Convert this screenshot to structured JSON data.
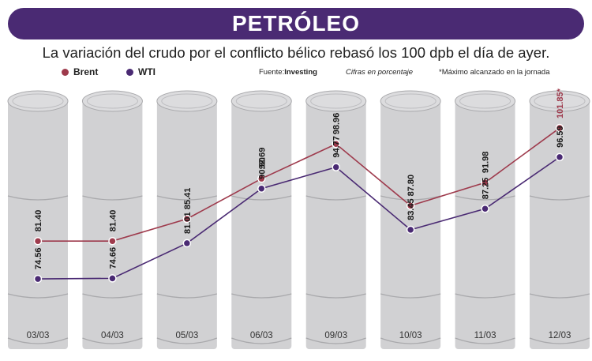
{
  "header": {
    "title": "PETRÓLEO"
  },
  "subtitle": "La variación del crudo por el conflicto bélico rebasó los 100 dpb el día de ayer.",
  "legend": {
    "brent": "Brent",
    "wti": "WTI"
  },
  "notes": {
    "source_prefix": "Fuente:",
    "source_name": "Investing",
    "units": "Cifras en porcentaje",
    "max_note": "*Máximo alcanzado en la jornada"
  },
  "colors": {
    "brent": "#9e3a4c",
    "wti": "#4a2a73",
    "barrel": "#d1d1d3",
    "barrel_dark": "#a9a9ac",
    "header": "#4a2a73"
  },
  "chart_data": {
    "type": "line",
    "title": "PETRÓLEO",
    "subtitle": "La variación del crudo por el conflicto bélico rebasó los 100 dpb el día de ayer.",
    "categories": [
      "03/03",
      "04/03",
      "05/03",
      "06/03",
      "09/03",
      "10/03",
      "11/03",
      "12/03"
    ],
    "series": [
      {
        "name": "Brent",
        "color": "#9e3a4c",
        "values": [
          81.4,
          81.4,
          85.41,
          92.69,
          98.96,
          87.8,
          91.98,
          101.85
        ],
        "labels": [
          "81.40",
          "81.40",
          "85.41",
          "92.69",
          "98.96",
          "87.80",
          "91.98",
          "101.85*"
        ]
      },
      {
        "name": "WTI",
        "color": "#4a2a73",
        "values": [
          74.56,
          74.66,
          81.01,
          90.9,
          94.77,
          83.45,
          87.25,
          96.59
        ],
        "labels": [
          "74.56",
          "74.66",
          "81.01",
          "90.90",
          "94.77",
          "83.45",
          "87.25",
          "96.59"
        ]
      }
    ],
    "ylim": [
      70,
      105
    ],
    "grid": false,
    "legend_position": "top-left"
  }
}
